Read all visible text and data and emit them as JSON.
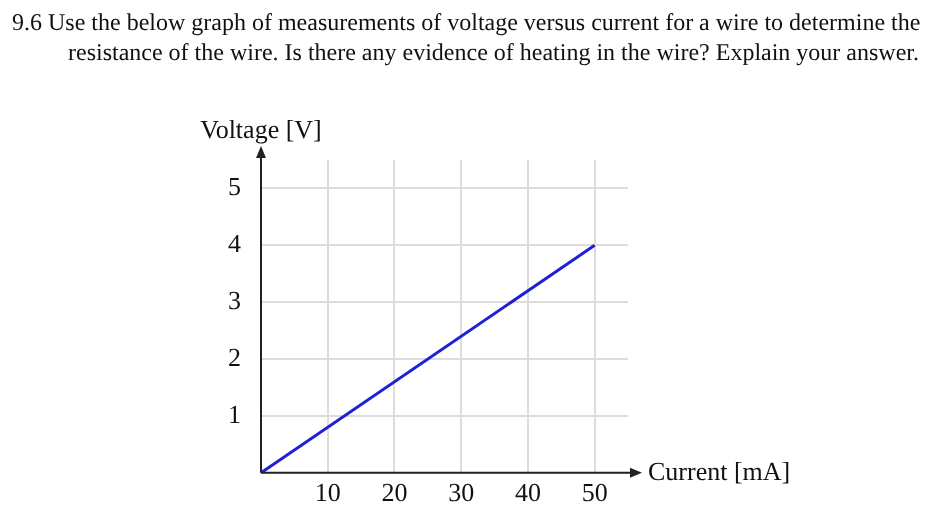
{
  "chart_data": {
    "type": "line",
    "title": "9.6 Use the below graph of measurements of voltage versus current for a wire to determine the resistance of the wire. Is there any evidence of heating in the wire? Explain your answer.",
    "xlabel": "Current [mA]",
    "ylabel": "Voltage [V]",
    "x": [
      0,
      50
    ],
    "series": [
      {
        "color": "#1f1fd6",
        "values": [
          0,
          4
        ]
      }
    ],
    "xlim": [
      0,
      55
    ],
    "xticks": [
      10,
      20,
      30,
      40,
      50
    ],
    "ylim": [
      0,
      5.5
    ],
    "yticks": [
      1,
      2,
      3,
      4,
      5
    ],
    "grid": true,
    "legend": false,
    "marker": "none",
    "line_style": "solid"
  }
}
